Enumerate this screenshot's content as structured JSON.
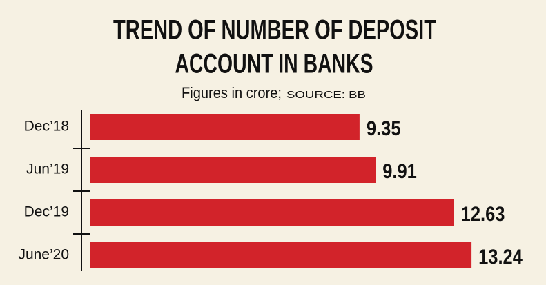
{
  "chart_data": {
    "type": "bar",
    "orientation": "horizontal",
    "title": [
      "TREND OF NUMBER OF DEPOSIT",
      "ACCOUNT IN BANKS"
    ],
    "subtitle": "Figures in crore;",
    "source": "SOURCE: BB",
    "categories": [
      "Dec’18",
      "Jun’19",
      "Dec’19",
      "June’20"
    ],
    "values": [
      9.35,
      9.91,
      12.63,
      13.24
    ],
    "color": "#d2232a"
  }
}
